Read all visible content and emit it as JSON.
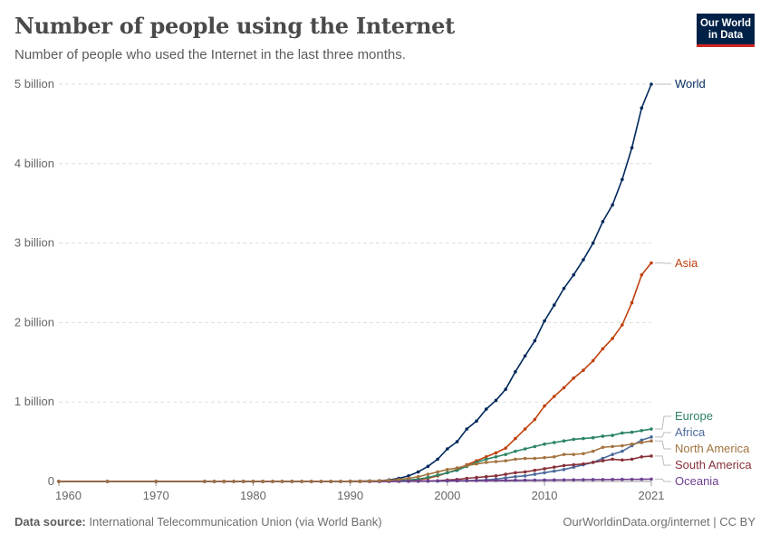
{
  "header": {
    "title": "Number of people using the Internet",
    "subtitle": "Number of people who used the Internet in the last three months.",
    "logo_text": "Our World in Data"
  },
  "footer": {
    "source_label": "Data source:",
    "source_text": "International Telecommunication Union (via World Bank)",
    "credit": "OurWorldinData.org/internet | CC BY"
  },
  "chart_data": {
    "type": "line",
    "title": "Number of people using the Internet",
    "subtitle": "Number of people who used the Internet in the last three months.",
    "xlabel": "",
    "ylabel": "",
    "xlim": [
      1960,
      2021
    ],
    "ylim": [
      0,
      5
    ],
    "y_unit": "billion",
    "grid": "horizontal dashed",
    "legend": "right, line-end labels",
    "x_ticks": [
      "1960",
      "1970",
      "1980",
      "1990",
      "2000",
      "2010",
      "2021"
    ],
    "y_ticks": [
      {
        "value": 0,
        "label": "0"
      },
      {
        "value": 1,
        "label": "1 billion"
      },
      {
        "value": 2,
        "label": "2 billion"
      },
      {
        "value": 3,
        "label": "3 billion"
      },
      {
        "value": 4,
        "label": "4 billion"
      },
      {
        "value": 5,
        "label": "5 billion"
      }
    ],
    "x": [
      1960,
      1965,
      1970,
      1975,
      1976,
      1977,
      1978,
      1979,
      1980,
      1981,
      1982,
      1983,
      1984,
      1985,
      1986,
      1987,
      1988,
      1989,
      1990,
      1991,
      1992,
      1993,
      1994,
      1995,
      1996,
      1997,
      1998,
      1999,
      2000,
      2001,
      2002,
      2003,
      2004,
      2005,
      2006,
      2007,
      2008,
      2009,
      2010,
      2011,
      2012,
      2013,
      2014,
      2015,
      2016,
      2017,
      2018,
      2019,
      2020,
      2021
    ],
    "series": [
      {
        "name": "World",
        "color": "#00295b",
        "values": [
          0,
          0,
          0,
          0,
          0,
          0,
          0,
          0,
          0,
          0,
          0,
          0,
          0,
          0,
          0,
          0,
          0,
          0,
          0.003,
          0.004,
          0.007,
          0.01,
          0.02,
          0.04,
          0.07,
          0.12,
          0.19,
          0.28,
          0.41,
          0.5,
          0.66,
          0.76,
          0.91,
          1.02,
          1.16,
          1.38,
          1.58,
          1.77,
          2.02,
          2.22,
          2.43,
          2.6,
          2.79,
          3.0,
          3.27,
          3.48,
          3.8,
          4.2,
          4.7,
          5.0
        ]
      },
      {
        "name": "Asia",
        "color": "#c0410e",
        "values": [
          0,
          0,
          0,
          0,
          0,
          0,
          0,
          0,
          0,
          0,
          0,
          0,
          0,
          0,
          0,
          0,
          0,
          0,
          0,
          0,
          0,
          0.001,
          0.002,
          0.005,
          0.01,
          0.02,
          0.04,
          0.07,
          0.11,
          0.15,
          0.21,
          0.26,
          0.31,
          0.36,
          0.42,
          0.54,
          0.66,
          0.78,
          0.95,
          1.07,
          1.18,
          1.3,
          1.4,
          1.52,
          1.67,
          1.8,
          1.97,
          2.25,
          2.6,
          2.75
        ]
      },
      {
        "name": "Europe",
        "color": "#2c8465",
        "values": [
          0,
          0,
          0,
          0,
          0,
          0,
          0,
          0,
          0,
          0,
          0,
          0,
          0,
          0,
          0,
          0,
          0,
          0,
          0.001,
          0.002,
          0.003,
          0.005,
          0.007,
          0.01,
          0.02,
          0.03,
          0.05,
          0.08,
          0.11,
          0.14,
          0.19,
          0.24,
          0.28,
          0.31,
          0.34,
          0.38,
          0.41,
          0.44,
          0.47,
          0.49,
          0.51,
          0.53,
          0.54,
          0.55,
          0.57,
          0.58,
          0.61,
          0.62,
          0.64,
          0.66
        ]
      },
      {
        "name": "Africa",
        "color": "#4c6a9c",
        "values": [
          0,
          0,
          0,
          0,
          0,
          0,
          0,
          0,
          0,
          0,
          0,
          0,
          0,
          0,
          0,
          0,
          0,
          0,
          0,
          0,
          0,
          0,
          0.001,
          0.001,
          0.002,
          0.002,
          0.003,
          0.004,
          0.005,
          0.007,
          0.01,
          0.015,
          0.02,
          0.03,
          0.045,
          0.06,
          0.07,
          0.09,
          0.11,
          0.13,
          0.15,
          0.18,
          0.21,
          0.24,
          0.29,
          0.34,
          0.38,
          0.45,
          0.52,
          0.56
        ]
      },
      {
        "name": "South America",
        "color": "#883039",
        "values": [
          0,
          0,
          0,
          0,
          0,
          0,
          0,
          0,
          0,
          0,
          0,
          0,
          0,
          0,
          0,
          0,
          0,
          0,
          0,
          0,
          0,
          0.001,
          0.001,
          0.002,
          0.003,
          0.004,
          0.005,
          0.01,
          0.018,
          0.025,
          0.04,
          0.05,
          0.06,
          0.07,
          0.09,
          0.11,
          0.12,
          0.14,
          0.16,
          0.18,
          0.2,
          0.21,
          0.22,
          0.24,
          0.26,
          0.28,
          0.27,
          0.28,
          0.31,
          0.32
        ]
      },
      {
        "name": "Oceania",
        "color": "#6d3e91",
        "values": [
          0,
          0,
          0,
          0,
          0,
          0,
          0,
          0,
          0,
          0,
          0,
          0,
          0,
          0,
          0,
          0,
          0,
          0,
          0,
          0,
          0,
          0.001,
          0.002,
          0.003,
          0.004,
          0.005,
          0.006,
          0.007,
          0.008,
          0.009,
          0.01,
          0.011,
          0.012,
          0.013,
          0.014,
          0.015,
          0.016,
          0.017,
          0.018,
          0.019,
          0.02,
          0.021,
          0.022,
          0.023,
          0.024,
          0.025,
          0.026,
          0.027,
          0.028,
          0.03
        ]
      },
      {
        "name": "North America",
        "color": "#a2733f",
        "values": [
          0,
          0,
          0,
          0,
          0,
          0,
          0,
          0,
          0,
          0,
          0,
          0,
          0,
          0,
          0,
          0,
          0,
          0,
          0.002,
          0.003,
          0.005,
          0.01,
          0.015,
          0.025,
          0.04,
          0.06,
          0.09,
          0.12,
          0.15,
          0.17,
          0.2,
          0.22,
          0.24,
          0.25,
          0.26,
          0.28,
          0.29,
          0.29,
          0.3,
          0.31,
          0.34,
          0.34,
          0.35,
          0.38,
          0.43,
          0.44,
          0.45,
          0.47,
          0.49,
          0.51
        ]
      }
    ]
  }
}
